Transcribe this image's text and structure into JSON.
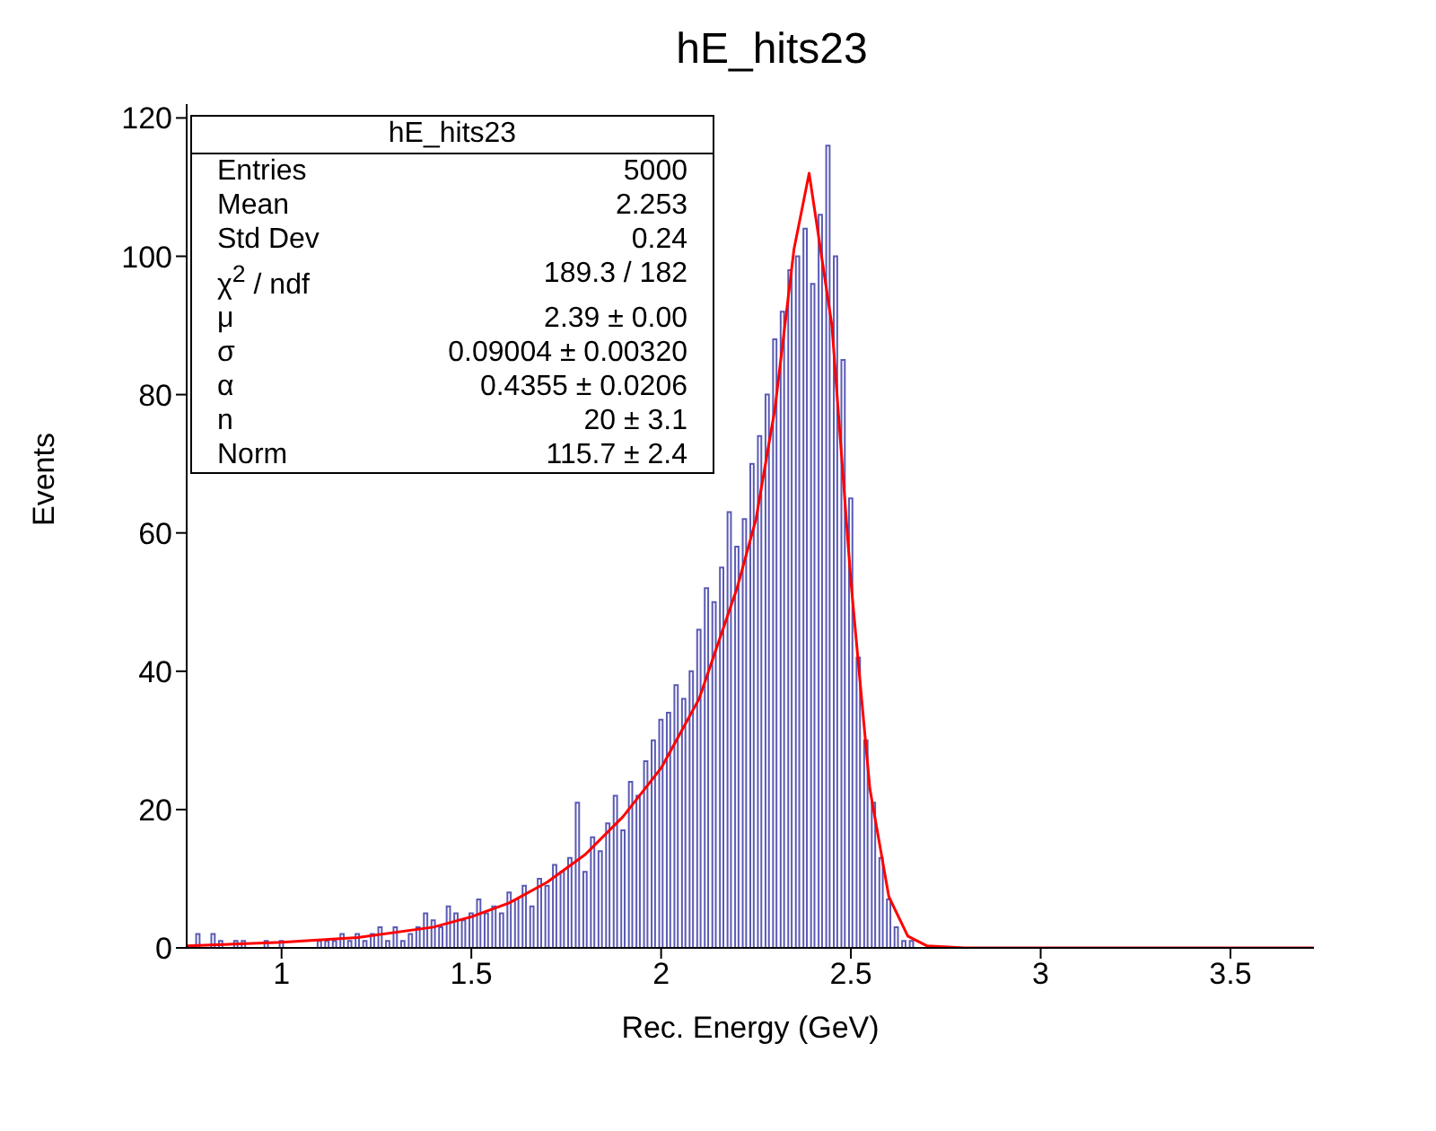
{
  "chart_data": {
    "type": "histogram",
    "title": "hE_hits23",
    "xlabel": "Rec. Energy (GeV)",
    "ylabel": "Events",
    "bins": [
      0.75,
      0.77,
      0.79,
      0.81,
      0.83,
      0.85,
      0.87,
      0.89,
      0.91,
      0.93,
      0.95,
      0.97,
      0.99,
      1.01,
      1.03,
      1.05,
      1.07,
      1.09,
      1.11,
      1.13,
      1.15,
      1.17,
      1.19,
      1.21,
      1.23,
      1.25,
      1.27,
      1.29,
      1.31,
      1.33,
      1.35,
      1.37,
      1.39,
      1.41,
      1.43,
      1.45,
      1.47,
      1.49,
      1.51,
      1.53,
      1.55,
      1.57,
      1.59,
      1.61,
      1.63,
      1.65,
      1.67,
      1.69,
      1.71,
      1.73,
      1.75,
      1.77,
      1.79,
      1.81,
      1.83,
      1.85,
      1.87,
      1.89,
      1.91,
      1.93,
      1.95,
      1.97,
      1.99,
      2.01,
      2.03,
      2.05,
      2.07,
      2.09,
      2.11,
      2.13,
      2.15,
      2.17,
      2.19,
      2.21,
      2.23,
      2.25,
      2.27,
      2.29,
      2.31,
      2.33,
      2.35,
      2.37,
      2.39,
      2.41,
      2.43,
      2.45,
      2.47,
      2.49,
      2.51,
      2.53,
      2.55,
      2.57,
      2.59,
      2.61,
      2.63,
      2.65,
      2.67,
      2.69,
      2.71,
      2.73,
      2.75
    ],
    "values": [
      0,
      2,
      0,
      2,
      1,
      0,
      1,
      1,
      0,
      0,
      1,
      0,
      1,
      0,
      0,
      0,
      0,
      1,
      1,
      1,
      2,
      1,
      2,
      1,
      2,
      3,
      1,
      3,
      1,
      2,
      3,
      5,
      4,
      3,
      6,
      5,
      4,
      5,
      7,
      5,
      6,
      5,
      8,
      7,
      9,
      6,
      10,
      9,
      12,
      11,
      13,
      21,
      11,
      16,
      14,
      18,
      22,
      17,
      24,
      22,
      27,
      30,
      33,
      34,
      38,
      36,
      40,
      46,
      52,
      50,
      55,
      63,
      58,
      62,
      70,
      74,
      80,
      88,
      92,
      98,
      100,
      104,
      96,
      106,
      116,
      100,
      85,
      65,
      42,
      30,
      21,
      13,
      7,
      3,
      1,
      1,
      0,
      0,
      0,
      0
    ],
    "color": "#5a5ab4",
    "series": [
      {
        "type": "line",
        "color": "#ff0000",
        "x": [
          0.75,
          1.0,
          1.2,
          1.4,
          1.5,
          1.6,
          1.7,
          1.8,
          1.9,
          2.0,
          2.1,
          2.2,
          2.25,
          2.3,
          2.35,
          2.39,
          2.45,
          2.5,
          2.55,
          2.6,
          2.65,
          2.7,
          2.8,
          3.72
        ],
        "values": [
          0.3,
          0.8,
          1.5,
          3,
          4.5,
          6.5,
          9.5,
          13.5,
          19,
          26,
          36,
          52,
          62,
          78,
          101,
          112,
          90,
          53,
          23,
          7.4,
          1.7,
          0.3,
          0,
          0
        ]
      }
    ],
    "xlim": [
      0.75,
      3.72
    ],
    "xticks": [
      1,
      1.5,
      2,
      2.5,
      3,
      3.5
    ],
    "ylim": [
      0,
      122
    ],
    "yticks": [
      0,
      20,
      40,
      60,
      80,
      100,
      120
    ],
    "grid": false,
    "legend": false,
    "annotations": [
      "hE_hits23",
      "Entries",
      "5000",
      "Mean",
      "2.253",
      "Std Dev",
      "0.24",
      "χ$^{2}$ / ndf",
      "189.3 / 182",
      "μ",
      "2.39 ± 0.00",
      "σ",
      "0.09004 ± 0.00320",
      "α",
      "0.4355 ± 0.0206",
      "n",
      "20 ± 3.1",
      "Norm",
      "115.7 ± 2.4"
    ]
  }
}
